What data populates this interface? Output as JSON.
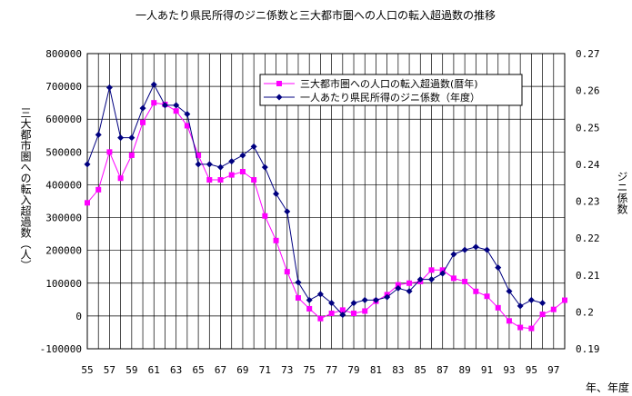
{
  "chart_data": {
    "type": "line",
    "title": "一人あたり県民所得のジニ係数と三大都市圏への人口の転入超過数の推移",
    "xlabel": "年、年度",
    "ylabel_left": "三大都市圏への転入超過数（人）",
    "ylabel_right": "ジニ係数",
    "x_tick_labels": [
      "55",
      "57",
      "59",
      "61",
      "63",
      "65",
      "67",
      "69",
      "71",
      "73",
      "75",
      "77",
      "79",
      "81",
      "83",
      "85",
      "87",
      "89",
      "91",
      "93",
      "95",
      "97"
    ],
    "x": [
      55,
      56,
      57,
      58,
      59,
      60,
      61,
      62,
      63,
      64,
      65,
      66,
      67,
      68,
      69,
      70,
      71,
      72,
      73,
      74,
      75,
      76,
      77,
      78,
      79,
      80,
      81,
      82,
      83,
      84,
      85,
      86,
      87,
      88,
      89,
      90,
      91,
      92,
      93,
      94,
      95,
      96,
      97,
      98
    ],
    "y_left_ticks": [
      "800000",
      "700000",
      "600000",
      "500000",
      "400000",
      "300000",
      "200000",
      "100000",
      "0",
      "-100000"
    ],
    "y_right_ticks": [
      "0.27",
      "0.26",
      "0.25",
      "0.24",
      "0.23",
      "0.22",
      "0.21",
      "0.2",
      "0.19"
    ],
    "ylim_left": [
      -100000,
      800000
    ],
    "ylim_right": [
      0.19,
      0.27
    ],
    "grid": true,
    "legend_position": "top-right",
    "series": [
      {
        "name": "三大都市圏への人口の転入超過数(暦年)",
        "axis": "left",
        "color": "#ff00ff",
        "marker": "square",
        "x": [
          55,
          56,
          57,
          58,
          59,
          60,
          61,
          62,
          63,
          64,
          65,
          66,
          67,
          68,
          69,
          70,
          71,
          72,
          73,
          74,
          75,
          76,
          77,
          78,
          79,
          80,
          81,
          82,
          83,
          84,
          85,
          86,
          87,
          88,
          89,
          90,
          91,
          92,
          93,
          94,
          95,
          96,
          97,
          98
        ],
        "values": [
          345000,
          385000,
          500000,
          420000,
          490000,
          590000,
          650000,
          645000,
          625000,
          580000,
          490000,
          415000,
          415000,
          430000,
          440000,
          415000,
          305000,
          230000,
          135000,
          55000,
          22000,
          -8000,
          8000,
          18000,
          8000,
          15000,
          45000,
          65000,
          95000,
          100000,
          105000,
          140000,
          140000,
          115000,
          105000,
          75000,
          60000,
          25000,
          -15000,
          -35000,
          -38000,
          5000,
          20000,
          48000
        ]
      },
      {
        "name": "一人あたり県民所得のジニ係数（年度）",
        "axis": "right",
        "color": "#000080",
        "marker": "diamond",
        "x": [
          55,
          56,
          57,
          58,
          59,
          60,
          61,
          62,
          63,
          64,
          65,
          66,
          67,
          68,
          69,
          70,
          71,
          72,
          73,
          74,
          75,
          76,
          77,
          78,
          79,
          80,
          81,
          82,
          83,
          84,
          85,
          86,
          87,
          88,
          89,
          90,
          91,
          92,
          93,
          94,
          95,
          96
        ],
        "values": [
          0.24,
          0.248,
          0.2608,
          0.2472,
          0.2472,
          0.2552,
          0.2616,
          0.256,
          0.256,
          0.2536,
          0.24,
          0.24,
          0.2392,
          0.2408,
          0.2424,
          0.2448,
          0.2392,
          0.232,
          0.2272,
          0.208,
          0.2032,
          0.2048,
          0.2024,
          0.1992,
          0.2024,
          0.2032,
          0.2032,
          0.204,
          0.2064,
          0.2056,
          0.2088,
          0.2088,
          0.2104,
          0.2156,
          0.2168,
          0.2176,
          0.2168,
          0.212,
          0.2056,
          0.2016,
          0.2032,
          0.2024
        ]
      }
    ]
  }
}
